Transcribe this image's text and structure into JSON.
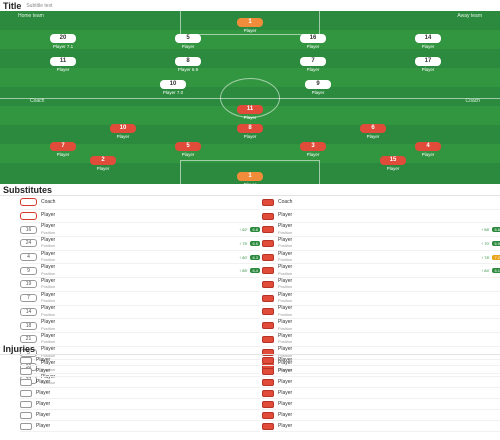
{
  "lineup": {
    "title": "Title",
    "subtitle": "Subtitle text",
    "home_team": "Home team",
    "away_team": "Away team",
    "home_coach": "Coach",
    "away_coach": "Coach",
    "players": [
      {
        "num": "1",
        "name": "Player",
        "side": "gk"
      },
      {
        "num": "20",
        "name": "Player",
        "side": "home",
        "rating": "7.1"
      },
      {
        "num": "5",
        "name": "Player",
        "side": "home"
      },
      {
        "num": "16",
        "name": "Player",
        "side": "home"
      },
      {
        "num": "14",
        "name": "Player",
        "side": "home"
      },
      {
        "num": "11",
        "name": "Player",
        "side": "home"
      },
      {
        "num": "8",
        "name": "Player",
        "side": "home",
        "rating": "6.9"
      },
      {
        "num": "7",
        "name": "Player",
        "side": "home"
      },
      {
        "num": "17",
        "name": "Player",
        "side": "home"
      },
      {
        "num": "10",
        "name": "Player",
        "side": "home",
        "rating": "7.0"
      },
      {
        "num": "9",
        "name": "Player",
        "side": "home"
      },
      {
        "num": "11",
        "name": "Player",
        "side": "away"
      },
      {
        "num": "10",
        "name": "Player",
        "side": "away"
      },
      {
        "num": "8",
        "name": "Player",
        "side": "away"
      },
      {
        "num": "6",
        "name": "Player",
        "side": "away"
      },
      {
        "num": "7",
        "name": "Player",
        "side": "away"
      },
      {
        "num": "5",
        "name": "Player",
        "side": "away"
      },
      {
        "num": "3",
        "name": "Player",
        "side": "away"
      },
      {
        "num": "4",
        "name": "Player",
        "side": "away"
      },
      {
        "num": "2",
        "name": "Player",
        "side": "away"
      },
      {
        "num": "15",
        "name": "Player",
        "side": "away"
      },
      {
        "num": "1",
        "name": "Player",
        "side": "gk"
      }
    ]
  },
  "subs": {
    "title": "Substitutes",
    "home": [
      {
        "num": "",
        "name": "Coach",
        "pos": ""
      },
      {
        "num": "",
        "name": "Player",
        "pos": ""
      },
      {
        "num": "16",
        "name": "Player",
        "pos": "Position",
        "time": "62'",
        "rating": "6.8"
      },
      {
        "num": "24",
        "name": "Player",
        "pos": "Position",
        "time": "75'",
        "rating": "6.5"
      },
      {
        "num": "4",
        "name": "Player",
        "pos": "Position",
        "time": "80'",
        "rating": "6.3"
      },
      {
        "num": "9",
        "name": "Player",
        "pos": "Position",
        "time": "85'",
        "rating": "6.4"
      },
      {
        "num": "19",
        "name": "Player",
        "pos": "Position"
      },
      {
        "num": "7",
        "name": "Player",
        "pos": "Position"
      },
      {
        "num": "14",
        "name": "Player",
        "pos": "Position"
      },
      {
        "num": "18",
        "name": "Player",
        "pos": "Position"
      },
      {
        "num": "21",
        "name": "Player",
        "pos": "Position"
      },
      {
        "num": "5",
        "name": "Player",
        "pos": "Position"
      },
      {
        "num": "30",
        "name": "Player",
        "pos": "Position"
      },
      {
        "num": "27",
        "name": "Player",
        "pos": "Position"
      }
    ],
    "away": [
      {
        "num": "",
        "name": "Coach",
        "pos": ""
      },
      {
        "num": "",
        "name": "Player",
        "pos": ""
      },
      {
        "num": "",
        "name": "Player",
        "pos": "Position",
        "time": "58'",
        "rating": "6.6"
      },
      {
        "num": "",
        "name": "Player",
        "pos": "Position",
        "time": "70'",
        "rating": "6.9"
      },
      {
        "num": "",
        "name": "Player",
        "pos": "Position",
        "time": "78'",
        "rating": "7.2"
      },
      {
        "num": "",
        "name": "Player",
        "pos": "Position",
        "time": "84'",
        "rating": "6.1"
      },
      {
        "num": "",
        "name": "Player",
        "pos": "Position"
      },
      {
        "num": "",
        "name": "Player",
        "pos": "Position"
      },
      {
        "num": "",
        "name": "Player",
        "pos": "Position"
      },
      {
        "num": "",
        "name": "Player",
        "pos": "Position"
      },
      {
        "num": "",
        "name": "Player",
        "pos": "Position"
      },
      {
        "num": "",
        "name": "Player",
        "pos": "Position"
      },
      {
        "num": "",
        "name": "Player",
        "pos": "Position"
      }
    ]
  },
  "injuries": {
    "title": "Injuries",
    "home": [
      "Player",
      "Player",
      "Player",
      "Player",
      "Player",
      "Player",
      "Player"
    ],
    "away": [
      "Player",
      "Player",
      "Player",
      "Player",
      "Player",
      "Player",
      "Player"
    ]
  },
  "colors": {
    "pitch": "#2b8a3e",
    "away_kit": "#e04b3a",
    "gk_kit": "#f08c3a"
  }
}
